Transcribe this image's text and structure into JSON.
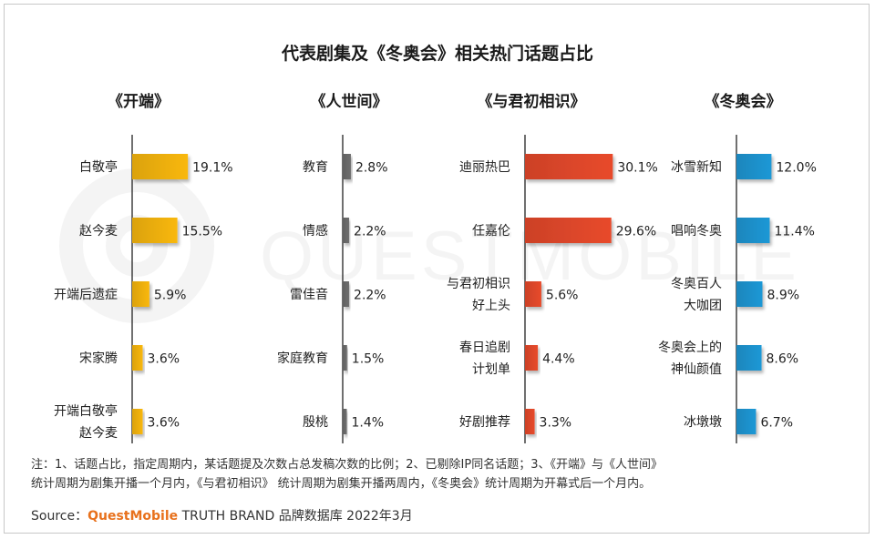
{
  "title": "代表剧集及《冬奥会》相关热门话题占比",
  "watermark": "QUESTMOBILE",
  "note_line1": "注：1、话题占比，指定周期内，某话题提及次数占总发稿次数的比例；2、已剔除IP同名话题；3、《开端》与《人世间》",
  "note_line2": "统计周期为剧集开播一个月内，《与君初相识》 统计周期为剧集开播两周内，《冬奥会》统计周期为开幕式后一个月内。",
  "source_label": "Source：",
  "source_brand": "QuestMobile",
  "source_rest": " TRUTH BRAND 品牌数据库 2022年3月",
  "chart_data": [
    {
      "type": "bar",
      "title": "《开端》",
      "color": "#f9b810",
      "categories": [
        [
          "白敬亭"
        ],
        [
          "赵今麦"
        ],
        [
          "开端后遗症"
        ],
        [
          "宋家腾"
        ],
        [
          "开端白敬亭",
          "赵今麦"
        ]
      ],
      "values": [
        19.1,
        15.5,
        5.9,
        3.6,
        3.6
      ],
      "value_labels": [
        "19.1%",
        "15.5%",
        "5.9%",
        "3.6%",
        "3.6%"
      ]
    },
    {
      "type": "bar",
      "title": "《人世间》",
      "color": "#6e6e6e",
      "categories": [
        [
          "教育"
        ],
        [
          "情感"
        ],
        [
          "雷佳音"
        ],
        [
          "家庭教育"
        ],
        [
          "殷桃"
        ]
      ],
      "values": [
        2.8,
        2.2,
        2.2,
        1.5,
        1.4
      ],
      "value_labels": [
        "2.8%",
        "2.2%",
        "2.2%",
        "1.5%",
        "1.4%"
      ]
    },
    {
      "type": "bar",
      "title": "《与君初相识》",
      "color": "#e84a2c",
      "categories": [
        [
          "迪丽热巴"
        ],
        [
          "任嘉伦"
        ],
        [
          "与君初相识",
          "好上头"
        ],
        [
          "春日追剧",
          "计划单"
        ],
        [
          "好剧推荐"
        ]
      ],
      "values": [
        30.1,
        29.6,
        5.6,
        4.4,
        3.3
      ],
      "value_labels": [
        "30.1%",
        "29.6%",
        "5.6%",
        "4.4%",
        "3.3%"
      ]
    },
    {
      "type": "bar",
      "title": "《冬奥会》",
      "color": "#1f98d6",
      "categories": [
        [
          "冰雪新知"
        ],
        [
          "唱响冬奥"
        ],
        [
          "冬奥百人",
          "大咖团"
        ],
        [
          "冬奥会上的",
          "神仙颜值"
        ],
        [
          "冰墩墩"
        ]
      ],
      "values": [
        12.0,
        11.4,
        8.9,
        8.6,
        6.7
      ],
      "value_labels": [
        "12.0%",
        "11.4%",
        "8.9%",
        "8.6%",
        "6.7%"
      ]
    }
  ]
}
